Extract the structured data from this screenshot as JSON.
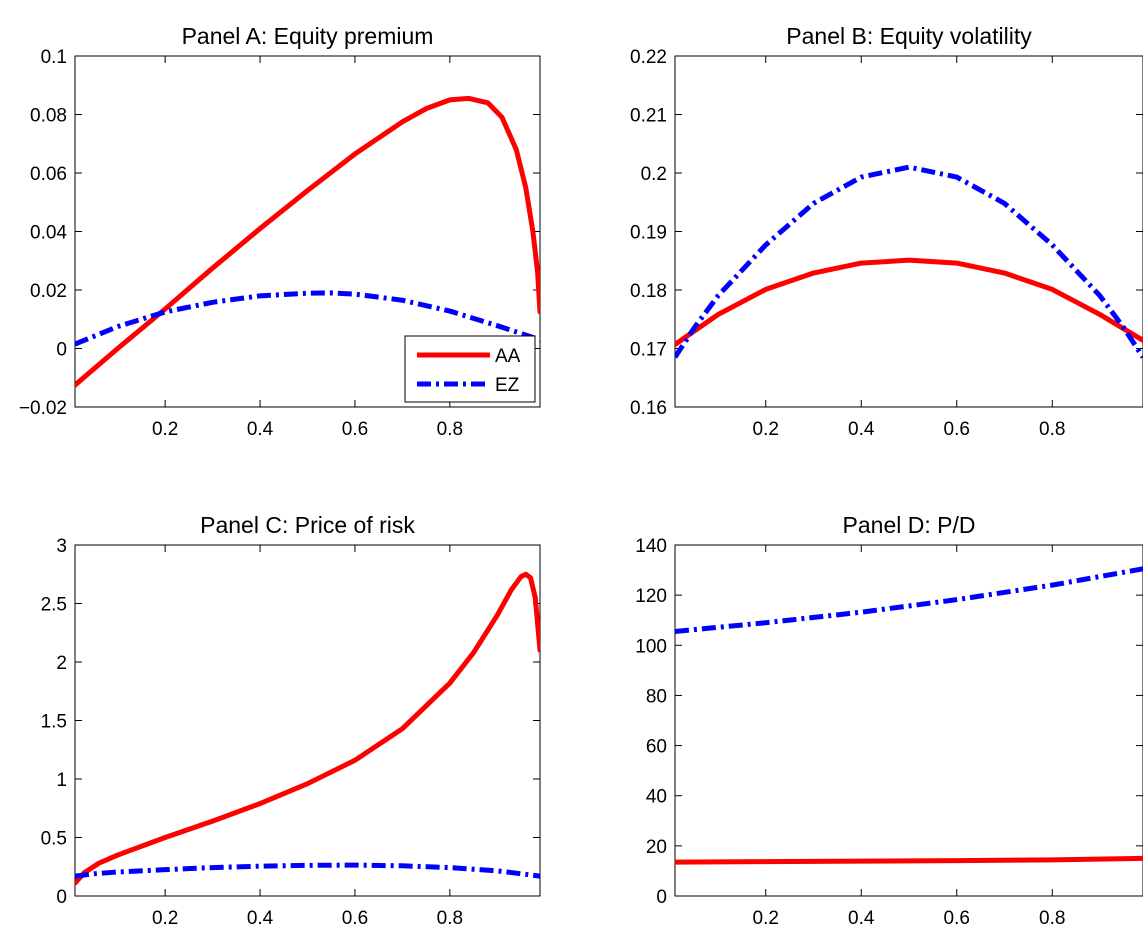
{
  "colors": {
    "AA": "#ff0000",
    "EZ": "#0000ff",
    "axis": "#000000",
    "background": "#ffffff"
  },
  "chart_data": [
    {
      "type": "line",
      "title": "Panel A: Equity premium",
      "xlim": [
        0.01,
        0.99
      ],
      "ylim": [
        -0.02,
        0.1
      ],
      "xticks": [
        "0.2",
        "0.4",
        "0.6",
        "0.8"
      ],
      "xtick_values": [
        0.2,
        0.4,
        0.6,
        0.8
      ],
      "yticks": [
        "−0.02",
        "0",
        "0.02",
        "0.04",
        "0.06",
        "0.08",
        "0.1"
      ],
      "ytick_values": [
        -0.02,
        0,
        0.02,
        0.04,
        0.06,
        0.08,
        0.1
      ],
      "grid": false,
      "legend": {
        "position": "bottom-right",
        "entries": [
          "AA",
          "EZ"
        ]
      },
      "series": [
        {
          "name": "AA",
          "style": "solid",
          "x": [
            0.01,
            0.1,
            0.2,
            0.3,
            0.4,
            0.5,
            0.6,
            0.7,
            0.75,
            0.8,
            0.84,
            0.88,
            0.91,
            0.94,
            0.96,
            0.975,
            0.985,
            0.99
          ],
          "y": [
            -0.0125,
            0.0,
            0.0135,
            0.0275,
            0.041,
            0.054,
            0.0665,
            0.0775,
            0.082,
            0.085,
            0.0855,
            0.084,
            0.079,
            0.068,
            0.055,
            0.04,
            0.026,
            0.0125
          ]
        },
        {
          "name": "EZ",
          "style": "dashdot",
          "x": [
            0.01,
            0.1,
            0.2,
            0.3,
            0.4,
            0.5,
            0.55,
            0.6,
            0.7,
            0.8,
            0.9,
            0.99
          ],
          "y": [
            0.0015,
            0.0075,
            0.0125,
            0.0158,
            0.018,
            0.0189,
            0.019,
            0.0186,
            0.0165,
            0.0128,
            0.0078,
            0.003
          ]
        }
      ]
    },
    {
      "type": "line",
      "title": "Panel B: Equity volatility",
      "xlim": [
        0.01,
        0.99
      ],
      "ylim": [
        0.16,
        0.22
      ],
      "xticks": [
        "0.2",
        "0.4",
        "0.6",
        "0.8"
      ],
      "xtick_values": [
        0.2,
        0.4,
        0.6,
        0.8
      ],
      "yticks": [
        "0.16",
        "0.17",
        "0.18",
        "0.19",
        "0.2",
        "0.21",
        "0.22"
      ],
      "ytick_values": [
        0.16,
        0.17,
        0.18,
        0.19,
        0.2,
        0.21,
        0.22
      ],
      "grid": false,
      "series": [
        {
          "name": "AA",
          "style": "solid",
          "x": [
            0.01,
            0.1,
            0.2,
            0.3,
            0.4,
            0.5,
            0.6,
            0.7,
            0.8,
            0.9,
            0.99
          ],
          "y": [
            0.1707,
            0.1758,
            0.1801,
            0.1829,
            0.1846,
            0.1851,
            0.1846,
            0.1829,
            0.1801,
            0.1758,
            0.1714
          ]
        },
        {
          "name": "EZ",
          "style": "dashdot",
          "x": [
            0.01,
            0.05,
            0.1,
            0.2,
            0.3,
            0.4,
            0.5,
            0.6,
            0.7,
            0.8,
            0.9,
            0.95,
            0.99
          ],
          "y": [
            0.1685,
            0.1735,
            0.179,
            0.1877,
            0.1948,
            0.1993,
            0.201,
            0.1993,
            0.1948,
            0.1877,
            0.179,
            0.1735,
            0.1685
          ]
        }
      ]
    },
    {
      "type": "line",
      "title": "Panel C: Price of risk",
      "xlim": [
        0.01,
        0.99
      ],
      "ylim": [
        0,
        3
      ],
      "xticks": [
        "0.2",
        "0.4",
        "0.6",
        "0.8"
      ],
      "xtick_values": [
        0.2,
        0.4,
        0.6,
        0.8
      ],
      "yticks": [
        "0",
        "0.5",
        "1",
        "1.5",
        "2",
        "2.5",
        "3"
      ],
      "ytick_values": [
        0,
        0.5,
        1,
        1.5,
        2,
        2.5,
        3
      ],
      "grid": false,
      "series": [
        {
          "name": "AA",
          "style": "solid",
          "x": [
            0.01,
            0.03,
            0.06,
            0.1,
            0.2,
            0.3,
            0.4,
            0.5,
            0.6,
            0.7,
            0.8,
            0.85,
            0.9,
            0.93,
            0.95,
            0.96,
            0.97,
            0.98,
            0.99
          ],
          "y": [
            0.11,
            0.2,
            0.28,
            0.35,
            0.5,
            0.64,
            0.79,
            0.96,
            1.16,
            1.43,
            1.82,
            2.08,
            2.4,
            2.62,
            2.73,
            2.75,
            2.72,
            2.55,
            2.1
          ]
        },
        {
          "name": "EZ",
          "style": "dashdot",
          "x": [
            0.01,
            0.05,
            0.1,
            0.2,
            0.3,
            0.4,
            0.5,
            0.6,
            0.7,
            0.8,
            0.9,
            0.99
          ],
          "y": [
            0.17,
            0.19,
            0.205,
            0.225,
            0.243,
            0.255,
            0.262,
            0.264,
            0.258,
            0.243,
            0.215,
            0.17
          ]
        }
      ]
    },
    {
      "type": "line",
      "title": "Panel D: P/D",
      "xlim": [
        0.01,
        0.99
      ],
      "ylim": [
        0,
        140
      ],
      "xticks": [
        "0.2",
        "0.4",
        "0.6",
        "0.8"
      ],
      "xtick_values": [
        0.2,
        0.4,
        0.6,
        0.8
      ],
      "yticks": [
        "0",
        "20",
        "40",
        "60",
        "80",
        "100",
        "120",
        "140"
      ],
      "ytick_values": [
        0,
        20,
        40,
        60,
        80,
        100,
        120,
        140
      ],
      "grid": false,
      "series": [
        {
          "name": "AA",
          "style": "solid",
          "x": [
            0.01,
            0.2,
            0.4,
            0.6,
            0.8,
            0.99
          ],
          "y": [
            13.5,
            13.7,
            13.9,
            14.1,
            14.4,
            15.0
          ]
        },
        {
          "name": "EZ",
          "style": "dashdot",
          "x": [
            0.01,
            0.2,
            0.4,
            0.6,
            0.8,
            0.99
          ],
          "y": [
            105.5,
            109.0,
            113.2,
            118.2,
            124.0,
            130.5
          ]
        }
      ]
    }
  ]
}
